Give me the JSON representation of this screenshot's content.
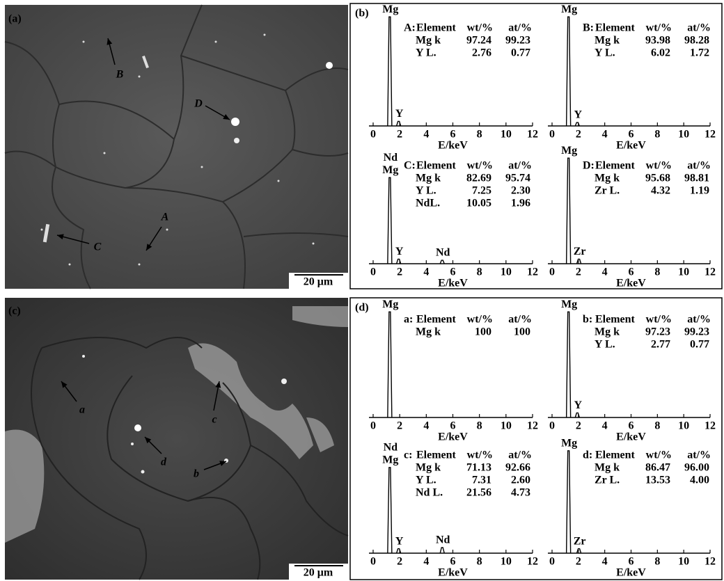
{
  "panels": [
    {
      "label": "(a)",
      "annotations": [
        "B",
        "D",
        "A",
        "C"
      ],
      "scale_bar": "20 μm"
    },
    {
      "label": "(b)",
      "spectra": [
        {
          "xlabel": "E/keV",
          "xlim": [
            0,
            12
          ],
          "xticks": [
            0,
            2,
            4,
            6,
            8,
            10,
            12
          ],
          "ylim": [
            0,
            100
          ],
          "peaks": [
            {
              "labels": [
                "Mg"
              ],
              "energy": 1.25,
              "height": 95
            },
            {
              "labels": [
                "Y"
              ],
              "energy": 1.92,
              "height": 4
            }
          ],
          "table": {
            "title": "A:",
            "header": [
              "Element",
              "wt/%",
              "at/%"
            ],
            "rows": [
              [
                "Mg k",
                "97.24",
                "99.23"
              ],
              [
                "Y L.",
                "2.76",
                "0.77"
              ]
            ]
          }
        },
        {
          "xlabel": "E/keV",
          "xlim": [
            0,
            12
          ],
          "xticks": [
            0,
            2,
            4,
            6,
            8,
            10,
            12
          ],
          "ylim": [
            0,
            100
          ],
          "peaks": [
            {
              "labels": [
                "Mg"
              ],
              "energy": 1.25,
              "height": 95
            },
            {
              "labels": [
                "Y"
              ],
              "energy": 1.92,
              "height": 3
            }
          ],
          "table": {
            "title": "B:",
            "header": [
              "Element",
              "wt/%",
              "at/%"
            ],
            "rows": [
              [
                "Mg k",
                "93.98",
                "98.28"
              ],
              [
                "Y L.",
                "6.02",
                "1.72"
              ]
            ]
          }
        },
        {
          "xlabel": "E/keV",
          "xlim": [
            0,
            12
          ],
          "xticks": [
            0,
            2,
            4,
            6,
            8,
            10,
            12
          ],
          "ylim": [
            0,
            100
          ],
          "peaks": [
            {
              "labels": [
                "Nd",
                "Mg"
              ],
              "energy": 1.25,
              "height": 75
            },
            {
              "labels": [
                "Y"
              ],
              "energy": 1.92,
              "height": 4
            },
            {
              "labels": [
                "Nd"
              ],
              "energy": 5.2,
              "height": 3
            }
          ],
          "table": {
            "title": "C:",
            "header": [
              "Element",
              "wt/%",
              "at/%"
            ],
            "rows": [
              [
                "Mg k",
                "82.69",
                "95.74"
              ],
              [
                "Y L.",
                "7.25",
                "2.30"
              ],
              [
                "NdL.",
                "10.05",
                "1.96"
              ]
            ]
          }
        },
        {
          "xlabel": "E/keV",
          "xlim": [
            0,
            12
          ],
          "xticks": [
            0,
            2,
            4,
            6,
            8,
            10,
            12
          ],
          "ylim": [
            0,
            100
          ],
          "peaks": [
            {
              "labels": [
                "Mg"
              ],
              "energy": 1.25,
              "height": 92
            },
            {
              "labels": [
                "Zr"
              ],
              "energy": 2.04,
              "height": 4
            }
          ],
          "table": {
            "title": "D:",
            "header": [
              "Element",
              "wt/%",
              "at/%"
            ],
            "rows": [
              [
                "Mg k",
                "95.68",
                "98.81"
              ],
              [
                "Zr L.",
                "4.32",
                "1.19"
              ]
            ]
          }
        }
      ]
    },
    {
      "label": "(c)",
      "annotations": [
        "a",
        "c",
        "d",
        "b"
      ],
      "scale_bar": "20 μm"
    },
    {
      "label": "(d)",
      "spectra": [
        {
          "xlabel": "E/keV",
          "xlim": [
            0,
            12
          ],
          "xticks": [
            0,
            2,
            4,
            6,
            8,
            10,
            12
          ],
          "ylim": [
            0,
            100
          ],
          "peaks": [
            {
              "labels": [
                "Mg"
              ],
              "energy": 1.25,
              "height": 92
            }
          ],
          "table": {
            "title": "a:",
            "header": [
              "Element",
              "wt/%",
              "at/%"
            ],
            "rows": [
              [
                "Mg k",
                "100",
                "100"
              ]
            ]
          }
        },
        {
          "xlabel": "E/keV",
          "xlim": [
            0,
            12
          ],
          "xticks": [
            0,
            2,
            4,
            6,
            8,
            10,
            12
          ],
          "ylim": [
            0,
            100
          ],
          "peaks": [
            {
              "labels": [
                "Mg"
              ],
              "energy": 1.25,
              "height": 92
            },
            {
              "labels": [
                "Y"
              ],
              "energy": 1.92,
              "height": 4
            }
          ],
          "table": {
            "title": "b:",
            "header": [
              "Element",
              "wt/%",
              "at/%"
            ],
            "rows": [
              [
                "Mg k",
                "97.23",
                "99.23"
              ],
              [
                "Y L.",
                "2.77",
                "0.77"
              ]
            ]
          }
        },
        {
          "xlabel": "E/keV",
          "xlim": [
            0,
            12
          ],
          "xticks": [
            0,
            2,
            4,
            6,
            8,
            10,
            12
          ],
          "ylim": [
            0,
            100
          ],
          "peaks": [
            {
              "labels": [
                "Nd",
                "Mg"
              ],
              "energy": 1.25,
              "height": 77
            },
            {
              "labels": [
                "Y"
              ],
              "energy": 1.92,
              "height": 4
            },
            {
              "labels": [
                "Nd"
              ],
              "energy": 5.2,
              "height": 5
            }
          ],
          "table": {
            "title": "c:",
            "header": [
              "Element",
              "wt/%",
              "at/%"
            ],
            "rows": [
              [
                "Mg k",
                "71.13",
                "92.66"
              ],
              [
                "Y L.",
                "7.31",
                "2.60"
              ],
              [
                "Nd L.",
                "21.56",
                "4.73"
              ]
            ]
          }
        },
        {
          "xlabel": "E/keV",
          "xlim": [
            0,
            12
          ],
          "xticks": [
            0,
            2,
            4,
            6,
            8,
            10,
            12
          ],
          "ylim": [
            0,
            100
          ],
          "peaks": [
            {
              "labels": [
                "Mg"
              ],
              "energy": 1.25,
              "height": 92
            },
            {
              "labels": [
                "Zr"
              ],
              "energy": 2.04,
              "height": 4
            }
          ],
          "table": {
            "title": "d:",
            "header": [
              "Element",
              "wt/%",
              "at/%"
            ],
            "rows": [
              [
                "Mg k",
                "86.47",
                "96.00"
              ],
              [
                "Zr L.",
                "13.53",
                "4.00"
              ]
            ]
          }
        }
      ]
    }
  ]
}
